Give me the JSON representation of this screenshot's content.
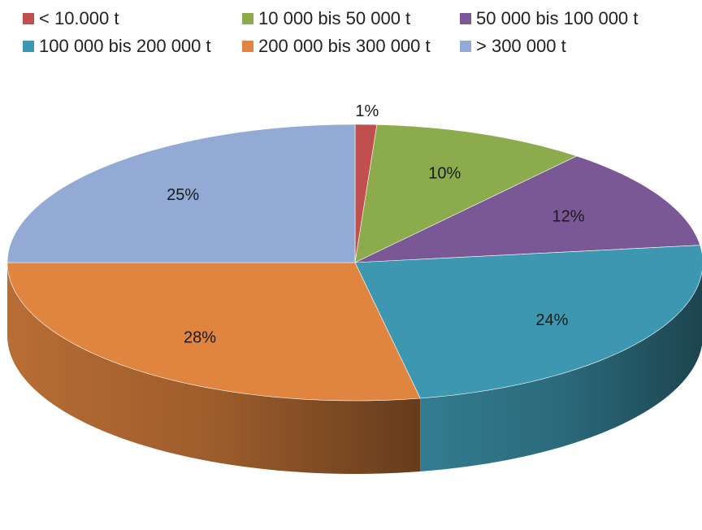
{
  "chart_data": {
    "type": "pie",
    "title": "",
    "categories": [
      "< 10.000 t",
      "10 000 bis 50 000 t",
      "50 000 bis 100 000 t",
      "100 000 bis 200 000 t",
      "200 000 bis 300 000 t",
      "> 300 000 t"
    ],
    "values": [
      1,
      10,
      12,
      24,
      28,
      25
    ],
    "value_labels": [
      "1%",
      "10%",
      "12%",
      "24%",
      "28%",
      "25%"
    ],
    "colors": [
      "#C0504D",
      "#8BAB4C",
      "#7A5896",
      "#3E97B0",
      "#E0853F",
      "#93ABD4"
    ],
    "legend_position": "top",
    "style": "3d-tilted"
  }
}
